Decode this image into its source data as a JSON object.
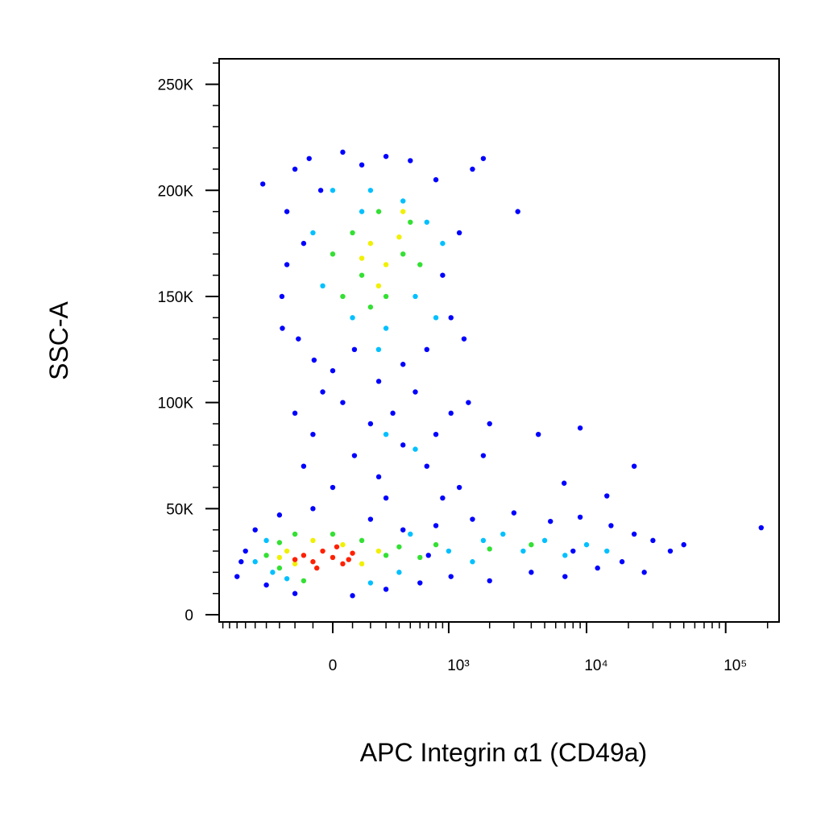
{
  "chart_data": {
    "type": "scatter",
    "xlabel": "APC Integrin α1 (CD49a)",
    "ylabel": "SSC-A",
    "xscale": "biexponential",
    "xlim": [
      -960,
      242000
    ],
    "ylim": [
      -3400,
      262000
    ],
    "xticks": [
      0,
      {
        "value": 1000,
        "label": "10³"
      },
      {
        "value": 10000,
        "label": "10⁴"
      },
      {
        "value": 100000,
        "label": "10⁵"
      }
    ],
    "xminorticks": [
      -900,
      -800,
      -700,
      -600,
      -500,
      -400,
      -300,
      -200,
      -100,
      100,
      200,
      300,
      400,
      500,
      600,
      700,
      800,
      900,
      2000,
      3000,
      4000,
      5000,
      6000,
      7000,
      8000,
      9000,
      20000,
      30000,
      40000,
      50000,
      60000,
      70000,
      80000,
      90000,
      200000
    ],
    "yticks": [
      0,
      {
        "value": 50000,
        "label": "50K"
      },
      {
        "value": 100000,
        "label": "100K"
      },
      {
        "value": 150000,
        "label": "150K"
      },
      {
        "value": 200000,
        "label": "200K"
      },
      {
        "value": 250000,
        "label": "250K"
      }
    ],
    "yminorticks": [
      10000,
      20000,
      30000,
      40000,
      60000,
      70000,
      80000,
      90000,
      110000,
      120000,
      130000,
      140000,
      160000,
      170000,
      180000,
      190000,
      210000,
      220000,
      230000,
      240000,
      260000
    ],
    "series": [
      {
        "color": "#0000ff",
        "x": [
          -283,
          -250,
          -200,
          -180,
          -150,
          -120,
          -94,
          -60,
          0,
          50,
          110,
          150,
          251,
          300,
          433,
          500,
          680,
          800,
          1040,
          1200,
          1500,
          1800,
          900,
          -250,
          -280,
          1300,
          3200,
          -430,
          -200,
          -150,
          -100,
          0,
          50,
          110,
          200,
          251,
          350,
          433,
          550,
          680,
          800,
          1040,
          1200,
          1400,
          1800,
          900,
          300,
          -50,
          2000,
          4500,
          6900,
          14000,
          22000,
          9000,
          -700,
          -600,
          -500,
          -400,
          -300,
          -200,
          -100,
          100,
          200,
          300,
          433,
          600,
          800,
          1040,
          1500,
          2000,
          3000,
          4000,
          5500,
          7000,
          9000,
          12000,
          15000,
          18000,
          22000,
          26000,
          30000,
          40000,
          50000,
          180000,
          -650,
          700,
          8000
        ],
        "values": [
          150000,
          190000,
          210000,
          130000,
          175000,
          215000,
          120000,
          200000,
          115000,
          218000,
          125000,
          212000,
          110000,
          216000,
          118000,
          214000,
          125000,
          205000,
          140000,
          180000,
          210000,
          215000,
          160000,
          165000,
          135000,
          130000,
          190000,
          203000,
          95000,
          70000,
          85000,
          60000,
          100000,
          75000,
          90000,
          65000,
          95000,
          80000,
          105000,
          70000,
          85000,
          95000,
          60000,
          100000,
          75000,
          55000,
          55000,
          105000,
          90000,
          85000,
          62000,
          56000,
          70000,
          88000,
          18000,
          30000,
          40000,
          14000,
          47000,
          10000,
          50000,
          9000,
          45000,
          12000,
          40000,
          15000,
          42000,
          18000,
          45000,
          16000,
          48000,
          20000,
          44000,
          18000,
          46000,
          22000,
          42000,
          25000,
          38000,
          20000,
          35000,
          30000,
          33000,
          41000,
          25000,
          28000,
          30000
        ]
      },
      {
        "color": "#00c0ff",
        "x": [
          -100,
          0,
          100,
          150,
          200,
          300,
          433,
          550,
          680,
          800,
          -50,
          900,
          250,
          300,
          550,
          -500,
          -400,
          -250,
          200,
          500,
          1000,
          1500,
          2500,
          3500,
          5000,
          7000,
          10000,
          14000,
          -350,
          400,
          1800
        ],
        "values": [
          180000,
          200000,
          140000,
          190000,
          200000,
          135000,
          195000,
          150000,
          185000,
          140000,
          155000,
          175000,
          125000,
          85000,
          78000,
          25000,
          35000,
          17000,
          15000,
          38000,
          30000,
          25000,
          38000,
          30000,
          35000,
          28000,
          33000,
          30000,
          20000,
          20000,
          35000
        ]
      },
      {
        "color": "#33e033",
        "x": [
          0,
          100,
          150,
          251,
          300,
          433,
          500,
          600,
          200,
          50,
          -400,
          -300,
          -300,
          -200,
          0,
          150,
          300,
          400,
          600,
          -150,
          800,
          2000,
          4000
        ],
        "values": [
          170000,
          180000,
          160000,
          190000,
          150000,
          170000,
          185000,
          165000,
          145000,
          150000,
          28000,
          22000,
          34000,
          38000,
          38000,
          35000,
          28000,
          32000,
          27000,
          16000,
          33000,
          31000,
          33000
        ]
      },
      {
        "color": "#f0f000",
        "x": [
          200,
          300,
          400,
          250,
          433,
          150,
          -250,
          -200,
          -100,
          50,
          150,
          250,
          -300
        ],
        "values": [
          175000,
          165000,
          178000,
          155000,
          190000,
          168000,
          30000,
          24000,
          35000,
          33000,
          24000,
          30000,
          27000
        ]
      },
      {
        "color": "#ff2000",
        "x": [
          -150,
          -100,
          -50,
          0,
          50,
          100,
          -80,
          20,
          -200,
          80
        ],
        "values": [
          28000,
          25000,
          30000,
          27000,
          24000,
          29000,
          22000,
          32000,
          26000,
          26000
        ]
      }
    ]
  }
}
